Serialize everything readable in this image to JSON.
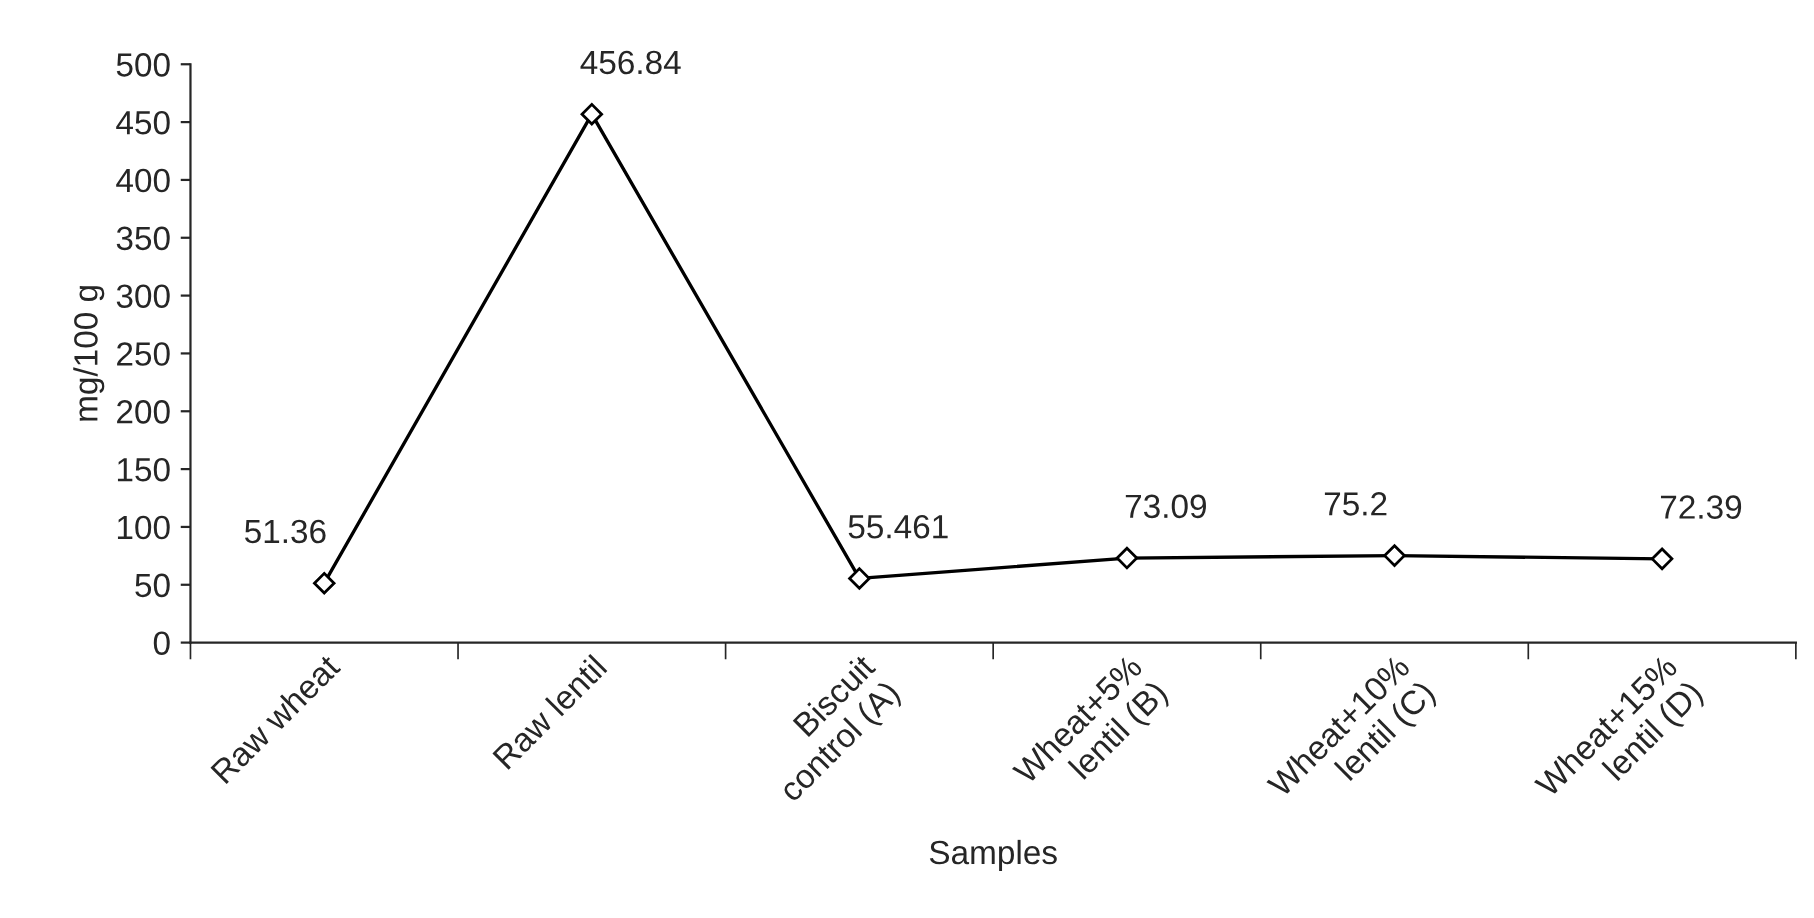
{
  "chart_data": {
    "type": "line",
    "xlabel": "Samples",
    "ylabel": "mg/100 g",
    "categories": [
      "Raw wheat",
      "Raw lentil",
      "Biscuit\ncontrol (A)",
      "Wheat+5%\nlentil (B)",
      "Wheat+10%\nlentil (C)",
      "Wheat+15%\nlentil (D)"
    ],
    "series": [
      {
        "color": "#000000",
        "values": [
          51.36,
          456.84,
          55.461,
          73.09,
          75.2,
          72.39
        ]
      }
    ],
    "ylim": [
      0,
      500
    ],
    "yticks": [
      0,
      50,
      100,
      150,
      200,
      250,
      300,
      350,
      400,
      450,
      500
    ],
    "data_labels": true,
    "marker": "diamond",
    "line_style": "solid",
    "grid": false,
    "legend": false
  }
}
